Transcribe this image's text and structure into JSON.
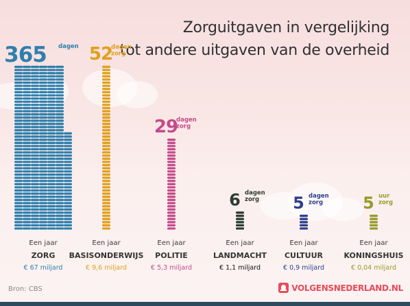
{
  "header": {
    "title_line1": "Zorguitgaven in vergelijking",
    "title_line2": "tot andere uitgaven van de overheid"
  },
  "footer": {
    "source": "Bron: CBS",
    "brand": "VOLGENSNEDERLAND.NL"
  },
  "colors": {
    "zorg": "#2f7fad",
    "basisonderwijs": "#e0a01f",
    "politie": "#c44c8a",
    "landmacht": "#2e3d34",
    "cultuur": "#2f3f8f",
    "koningshuis": "#9a9a2c",
    "brand": "#e84b5a"
  },
  "chart_data": {
    "type": "bar",
    "title": "Zorguitgaven in vergelijking tot andere uitgaven van de overheid",
    "categories": [
      "ZORG",
      "BASISONDERWIJS",
      "POLITIE",
      "LANDMACHT",
      "CULTUUR",
      "KONINGSHUIS"
    ],
    "values": [
      365,
      52,
      29,
      6,
      5,
      5
    ],
    "value_labels": [
      "365",
      "52",
      "29",
      "6",
      "5",
      "5"
    ],
    "unit_labels": [
      "dagen",
      "dagen zorg",
      "dagen zorg",
      "dagen zorg",
      "dagen zorg",
      "uur zorg"
    ],
    "captions": [
      "Een jaar",
      "Een jaar",
      "Een jaar",
      "Een jaar",
      "Een jaar",
      "Een jaar"
    ],
    "costs": [
      "€ 67 miljard",
      "€ 9,6 miljard",
      "€ 5,3 miljard",
      "€ 1,1 miljard",
      "€ 0,9 miljard",
      "€ 0,04 miljard"
    ]
  }
}
